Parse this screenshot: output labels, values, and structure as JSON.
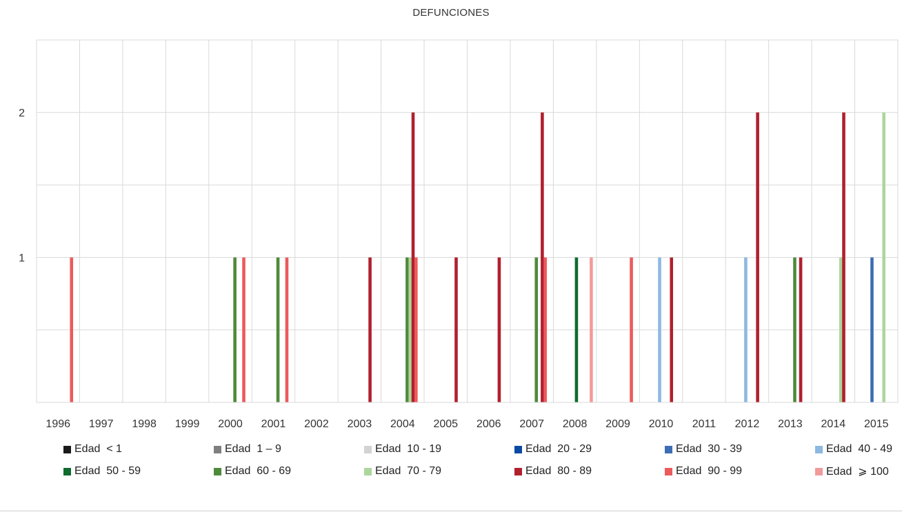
{
  "chart_data": {
    "type": "bar",
    "title": "DEFUNCIONES",
    "xlabel": "",
    "ylabel": "",
    "ylim": [
      0,
      2.5
    ],
    "yticks": [
      1,
      2
    ],
    "grid": true,
    "legend_placement": "bottom",
    "categories": [
      "1996",
      "1997",
      "1998",
      "1999",
      "2000",
      "2001",
      "2002",
      "2003",
      "2004",
      "2005",
      "2006",
      "2007",
      "2008",
      "2009",
      "2010",
      "2011",
      "2012",
      "2013",
      "2014",
      "2015"
    ],
    "series": [
      {
        "name": "Edad  < 1",
        "color": "#1a1a1a",
        "values": [
          0,
          0,
          0,
          0,
          0,
          0,
          0,
          0,
          0,
          0,
          0,
          0,
          0,
          0,
          0,
          0,
          0,
          0,
          0,
          0
        ]
      },
      {
        "name": "Edad  1 – 9",
        "color": "#7f7f7f",
        "values": [
          0,
          0,
          0,
          0,
          0,
          0,
          0,
          0,
          0,
          0,
          0,
          0,
          0,
          0,
          0,
          0,
          0,
          0,
          0,
          0
        ]
      },
      {
        "name": "Edad  10 - 19",
        "color": "#d3d3d3",
        "values": [
          0,
          0,
          0,
          0,
          0,
          0,
          0,
          0,
          0,
          0,
          0,
          0,
          0,
          0,
          0,
          0,
          0,
          0,
          0,
          0
        ]
      },
      {
        "name": "Edad  20 - 29",
        "color": "#0b4aa3",
        "values": [
          0,
          0,
          0,
          0,
          0,
          0,
          0,
          0,
          0,
          0,
          0,
          0,
          0,
          0,
          0,
          0,
          0,
          0,
          0,
          0
        ]
      },
      {
        "name": "Edad  30 - 39",
        "color": "#3d6db5",
        "values": [
          0,
          0,
          0,
          0,
          0,
          0,
          0,
          0,
          0,
          0,
          0,
          0,
          0,
          0,
          0,
          0,
          0,
          0,
          0,
          1
        ]
      },
      {
        "name": "Edad  40 - 49",
        "color": "#8db8e2",
        "values": [
          0,
          0,
          0,
          0,
          0,
          0,
          0,
          0,
          0,
          0,
          0,
          0,
          0,
          0,
          1,
          0,
          1,
          0,
          0,
          0
        ]
      },
      {
        "name": "Edad  50 - 59",
        "color": "#0f6b2e",
        "values": [
          0,
          0,
          0,
          0,
          0,
          0,
          0,
          0,
          0,
          0,
          0,
          0,
          1,
          0,
          0,
          0,
          0,
          0,
          0,
          0
        ]
      },
      {
        "name": "Edad  60 - 69",
        "color": "#4f8a3a",
        "values": [
          0,
          0,
          0,
          0,
          1,
          1,
          0,
          0,
          1,
          0,
          0,
          1,
          0,
          0,
          0,
          0,
          0,
          1,
          0,
          0
        ]
      },
      {
        "name": "Edad  70 - 79",
        "color": "#add69c",
        "values": [
          0,
          0,
          0,
          0,
          0,
          0,
          0,
          0,
          1,
          0,
          0,
          0,
          0,
          0,
          0,
          0,
          0,
          0,
          1,
          2
        ]
      },
      {
        "name": "Edad  80 - 89",
        "color": "#b0202e",
        "values": [
          0,
          0,
          0,
          0,
          0,
          0,
          0,
          1,
          2,
          1,
          1,
          2,
          0,
          0,
          1,
          0,
          2,
          1,
          2,
          0
        ]
      },
      {
        "name": "Edad  90 - 99",
        "color": "#ec5a5c",
        "values": [
          1,
          0,
          0,
          0,
          1,
          1,
          0,
          0,
          1,
          0,
          0,
          1,
          0,
          1,
          0,
          0,
          0,
          0,
          0,
          0
        ]
      },
      {
        "name": "Edad  ⩾ 100",
        "color": "#f29a9a",
        "values": [
          0,
          0,
          0,
          0,
          0,
          0,
          0,
          0,
          0,
          0,
          0,
          0,
          1,
          0,
          0,
          0,
          0,
          0,
          0,
          0
        ]
      }
    ]
  }
}
